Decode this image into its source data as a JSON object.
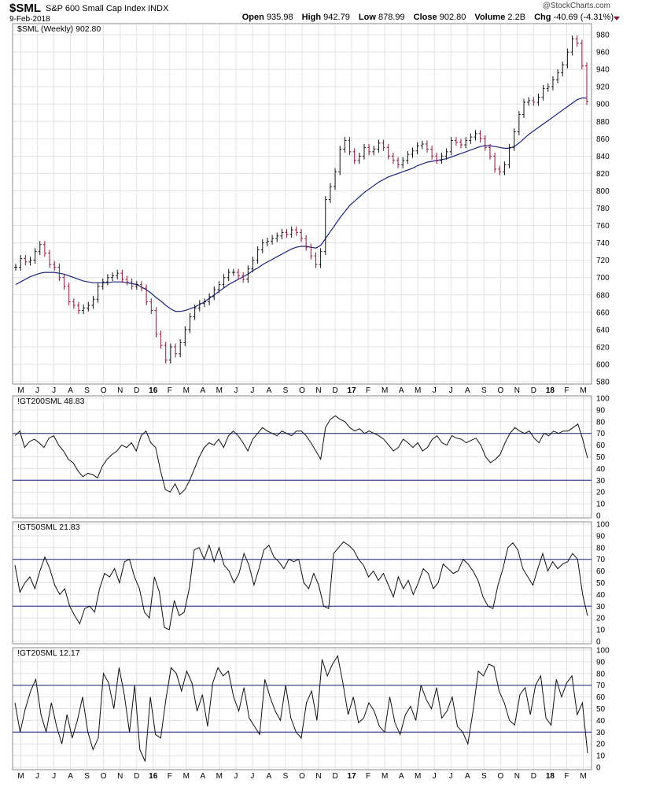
{
  "header": {
    "symbol": "$SML",
    "name": "S&P 600 Small Cap Index",
    "exchange": "INDX",
    "date": "9-Feb-2018",
    "brand": "@StockCharts.com",
    "open_label": "Open",
    "open": "935.98",
    "high_label": "High",
    "high": "942.79",
    "low_label": "Low",
    "low": "878.99",
    "close_label": "Close",
    "close": "902.80",
    "volume_label": "Volume",
    "volume": "2.2B",
    "chg_label": "Chg",
    "chg": "-40.69 (-4.31%)"
  },
  "colors": {
    "up": "#111111",
    "down": "#8b1538",
    "ma": "#1a237e",
    "ref_line": "#1a237e",
    "grid": "#e2e2e2",
    "frame": "#888888"
  },
  "chart_data": [
    {
      "type": "ohlc",
      "legend": "$SML (Weekly) 902.80",
      "ylim": [
        580,
        990
      ],
      "yticks": [
        580,
        600,
        620,
        640,
        660,
        680,
        700,
        720,
        740,
        760,
        780,
        800,
        820,
        840,
        860,
        880,
        900,
        920,
        940,
        960,
        980
      ],
      "x_month_labels": [
        "M",
        "J",
        "J",
        "A",
        "S",
        "O",
        "N",
        "D",
        "16",
        "F",
        "M",
        "A",
        "M",
        "J",
        "J",
        "A",
        "S",
        "O",
        "N",
        "D",
        "17",
        "F",
        "M",
        "A",
        "M",
        "J",
        "J",
        "A",
        "S",
        "O",
        "N",
        "D",
        "18",
        "F",
        "M"
      ],
      "close": [
        712,
        722,
        718,
        720,
        730,
        738,
        728,
        715,
        712,
        700,
        690,
        672,
        668,
        662,
        665,
        668,
        675,
        690,
        695,
        700,
        702,
        705,
        698,
        695,
        690,
        692,
        688,
        672,
        662,
        635,
        622,
        605,
        620,
        612,
        625,
        640,
        655,
        665,
        670,
        672,
        678,
        686,
        692,
        700,
        706,
        706,
        702,
        698,
        710,
        720,
        732,
        740,
        742,
        745,
        748,
        752,
        750,
        755,
        752,
        745,
        735,
        725,
        715,
        730,
        790,
        805,
        822,
        848,
        858,
        845,
        835,
        840,
        850,
        845,
        848,
        855,
        850,
        840,
        835,
        830,
        835,
        842,
        846,
        852,
        854,
        848,
        840,
        835,
        840,
        845,
        858,
        856,
        853,
        858,
        862,
        866,
        860,
        850,
        840,
        825,
        822,
        830,
        850,
        868,
        888,
        902,
        904,
        902,
        908,
        918,
        920,
        928,
        936,
        945,
        960,
        975,
        970,
        944,
        903
      ],
      "ma": [
        692,
        695,
        698,
        701,
        703,
        705,
        706,
        706,
        706,
        705,
        704,
        702,
        700,
        698,
        696,
        695,
        694,
        694,
        694,
        694,
        695,
        695,
        695,
        694,
        693,
        692,
        689,
        686,
        682,
        677,
        673,
        668,
        664,
        661,
        661,
        662,
        664,
        666,
        669,
        672,
        676,
        680,
        684,
        688,
        692,
        695,
        698,
        701,
        704,
        708,
        711,
        715,
        718,
        721,
        724,
        727,
        730,
        733,
        735,
        736,
        736,
        735,
        734,
        737,
        745,
        753,
        761,
        769,
        776,
        783,
        788,
        793,
        798,
        802,
        806,
        810,
        813,
        816,
        818,
        820,
        822,
        824,
        826,
        829,
        831,
        833,
        834,
        835,
        836,
        837,
        839,
        841,
        843,
        845,
        847,
        849,
        851,
        852,
        852,
        851,
        850,
        849,
        849,
        851,
        855,
        860,
        865,
        869,
        873,
        877,
        881,
        885,
        889,
        893,
        897,
        901,
        905,
        907,
        907
      ]
    },
    {
      "type": "line",
      "legend": "!GT200SML 48.83",
      "ylim": [
        0,
        100
      ],
      "yticks": [
        0,
        10,
        20,
        30,
        40,
        50,
        60,
        70,
        80,
        90,
        100
      ],
      "ref_lines": [
        30,
        70
      ],
      "values": [
        68,
        72,
        58,
        63,
        65,
        62,
        58,
        66,
        68,
        60,
        55,
        48,
        45,
        38,
        33,
        36,
        35,
        32,
        42,
        48,
        52,
        55,
        60,
        58,
        62,
        55,
        68,
        72,
        62,
        58,
        38,
        22,
        20,
        27,
        18,
        22,
        30,
        40,
        50,
        58,
        62,
        60,
        65,
        58,
        68,
        72,
        68,
        62,
        55,
        65,
        70,
        75,
        72,
        70,
        68,
        72,
        70,
        68,
        72,
        72,
        68,
        62,
        55,
        48,
        75,
        82,
        85,
        82,
        80,
        75,
        72,
        74,
        70,
        72,
        70,
        68,
        65,
        60,
        55,
        58,
        65,
        62,
        58,
        62,
        55,
        58,
        65,
        68,
        62,
        60,
        68,
        66,
        65,
        62,
        64,
        66,
        60,
        50,
        45,
        48,
        52,
        62,
        70,
        75,
        72,
        70,
        72,
        66,
        62,
        70,
        68,
        72,
        70,
        72,
        72,
        75,
        78,
        65,
        48.83
      ]
    },
    {
      "type": "line",
      "legend": "!GT50SML 21.83",
      "ylim": [
        0,
        100
      ],
      "yticks": [
        0,
        10,
        20,
        30,
        40,
        50,
        60,
        70,
        80,
        90,
        100
      ],
      "ref_lines": [
        30,
        70
      ],
      "values": [
        65,
        42,
        50,
        55,
        45,
        60,
        72,
        62,
        48,
        40,
        45,
        30,
        22,
        15,
        28,
        30,
        25,
        45,
        58,
        55,
        62,
        50,
        68,
        70,
        55,
        45,
        25,
        20,
        55,
        42,
        12,
        10,
        35,
        22,
        25,
        45,
        78,
        80,
        70,
        82,
        68,
        80,
        65,
        60,
        50,
        58,
        75,
        65,
        48,
        62,
        78,
        82,
        72,
        68,
        62,
        70,
        68,
        70,
        50,
        45,
        58,
        48,
        30,
        28,
        75,
        80,
        85,
        82,
        78,
        70,
        65,
        55,
        60,
        52,
        58,
        48,
        38,
        55,
        45,
        52,
        40,
        50,
        62,
        58,
        45,
        50,
        66,
        62,
        58,
        60,
        70,
        66,
        60,
        52,
        38,
        30,
        28,
        48,
        62,
        80,
        84,
        78,
        62,
        55,
        48,
        62,
        75,
        60,
        68,
        62,
        66,
        68,
        75,
        70,
        40,
        21.83
      ]
    },
    {
      "type": "line",
      "legend": "!GT20SML 12.17",
      "ylim": [
        0,
        100
      ],
      "yticks": [
        0,
        10,
        20,
        30,
        40,
        50,
        60,
        70,
        80,
        90,
        100
      ],
      "ref_lines": [
        30,
        70
      ],
      "values": [
        55,
        30,
        50,
        65,
        75,
        45,
        30,
        55,
        35,
        20,
        45,
        25,
        40,
        60,
        30,
        15,
        25,
        80,
        72,
        50,
        85,
        62,
        30,
        70,
        15,
        5,
        60,
        28,
        25,
        58,
        85,
        80,
        65,
        82,
        72,
        48,
        62,
        35,
        72,
        85,
        78,
        82,
        60,
        48,
        68,
        42,
        35,
        28,
        75,
        60,
        48,
        40,
        70,
        42,
        30,
        25,
        55,
        65,
        40,
        92,
        78,
        88,
        95,
        72,
        45,
        60,
        38,
        42,
        55,
        48,
        35,
        30,
        60,
        38,
        28,
        45,
        52,
        40,
        70,
        58,
        50,
        68,
        42,
        48,
        60,
        35,
        30,
        20,
        48,
        82,
        78,
        88,
        86,
        65,
        55,
        40,
        36,
        62,
        68,
        45,
        70,
        78,
        42,
        36,
        75,
        60,
        72,
        78,
        45,
        55,
        12.17
      ]
    }
  ]
}
